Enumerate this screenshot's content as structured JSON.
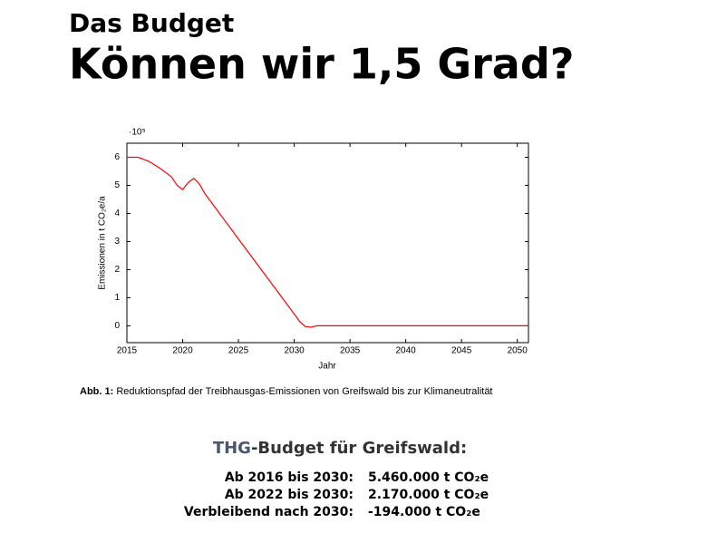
{
  "header": {
    "kicker": "Das Budget",
    "title": "Können wir 1,5 Grad?"
  },
  "chart_data": {
    "type": "line",
    "x": [
      2015,
      2016,
      2017,
      2018,
      2019,
      2019.5,
      2020,
      2020.5,
      2021,
      2021.5,
      2022,
      2025,
      2028,
      2030,
      2030.5,
      2031,
      2031.5,
      2032,
      2040,
      2051
    ],
    "values": [
      6.0,
      6.0,
      5.85,
      5.6,
      5.3,
      5.0,
      4.85,
      5.1,
      5.25,
      5.05,
      4.7,
      3.09,
      1.49,
      0.42,
      0.15,
      -0.03,
      -0.05,
      0,
      0,
      0
    ],
    "color": "#ff0000",
    "xlabel": "Jahr",
    "ylabel": "Emissionen in t CO₂e/a",
    "y_multiplier": "·10⁵",
    "xlim": [
      2015,
      2051
    ],
    "ylim": [
      -0.6,
      6.5
    ],
    "xticks": [
      2015,
      2020,
      2025,
      2030,
      2035,
      2040,
      2045,
      2050
    ],
    "yticks": [
      0,
      1,
      2,
      3,
      4,
      5,
      6
    ],
    "grid": false
  },
  "caption": {
    "label": "Abb. 1:",
    "text": "Reduktionspfad der Treibhausgas-Emissionen von Greifswald bis zur Klimaneutralität"
  },
  "budget": {
    "title_highlight": "THG",
    "title_rest": "-Budget für Greifswald:",
    "rows": [
      [
        "Ab 2016 bis 2030:",
        "5.460.000 t CO₂e"
      ],
      [
        "Ab 2022 bis 2030:",
        "2.170.000 t CO₂e"
      ],
      [
        "Verbleibend nach 2030:",
        "-194.000 t CO₂e"
      ]
    ]
  }
}
